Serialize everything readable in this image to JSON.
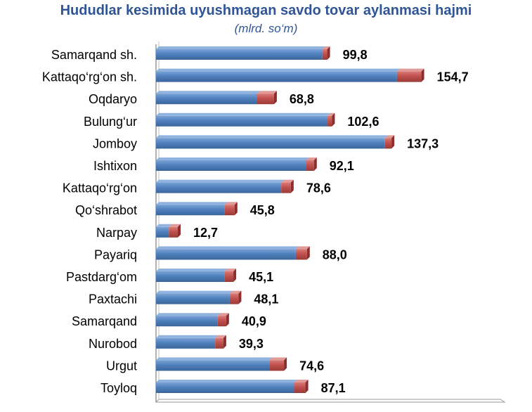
{
  "title": "Hududlar kesimida uyushmagan savdo tovar aylanmasi hajmi",
  "subtitle": "(mlrd. so‘m)",
  "colors": {
    "blue": "#4f81bd",
    "blue_dark": "#385d8a",
    "red": "#c0504d",
    "red_dark": "#8c2e2b",
    "title": "#2f5597"
  },
  "chart_data": {
    "type": "bar",
    "orientation": "horizontal",
    "stacked": true,
    "categories": [
      "Samarqand sh.",
      "Kattaqo‘rg‘on  sh.",
      "Oqdaryo",
      "Bulung‘ur",
      "Jomboy",
      "Ishtixon",
      "Kattaqo‘rg‘on",
      "Qo‘shrabot",
      "Narpay",
      "Payariq",
      "Pastdarg‘om",
      "Paxtachi",
      "Samarqand",
      "Nurobod",
      "Urgut",
      "Toyloq"
    ],
    "series": [
      {
        "color": "#4f81bd",
        "values": [
          97.0,
          140.5,
          59.0,
          100.0,
          133.5,
          87.5,
          73.0,
          40.0,
          7.5,
          81.5,
          40.0,
          43.0,
          36.0,
          34.5,
          66.0,
          80.5
        ]
      },
      {
        "color": "#c0504d",
        "values": [
          2.8,
          14.2,
          9.8,
          2.6,
          3.8,
          4.6,
          5.6,
          5.8,
          5.2,
          6.5,
          5.1,
          5.1,
          4.9,
          4.8,
          8.6,
          6.6
        ]
      }
    ],
    "totals": [
      "99,8",
      "154,7",
      "68,8",
      "102,6",
      "137,3",
      "92,1",
      "78,6",
      "45,8",
      "12,7",
      "88,0",
      "45,1",
      "48,1",
      "40,9",
      "39,3",
      "74,6",
      "87,1"
    ],
    "xlim": [
      0,
      177
    ],
    "grid": false,
    "legend": "none"
  }
}
